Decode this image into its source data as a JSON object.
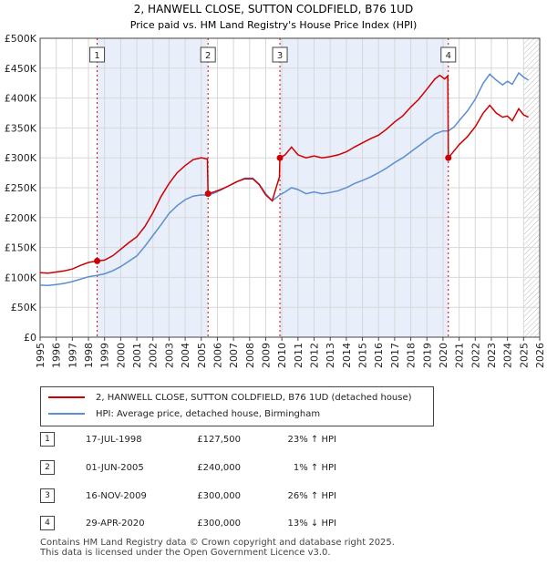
{
  "chart_data": {
    "type": "line",
    "title": "2, HANWELL CLOSE, SUTTON COLDFIELD, B76 1UD",
    "subtitle": "Price paid vs. HM Land Registry's House Price Index (HPI)",
    "ylim": [
      0,
      500000
    ],
    "xlim": [
      1995.0,
      2026.0
    ],
    "y_ticks": [
      {
        "v": 0,
        "label": "£0"
      },
      {
        "v": 50000,
        "label": "£50K"
      },
      {
        "v": 100000,
        "label": "£100K"
      },
      {
        "v": 150000,
        "label": "£150K"
      },
      {
        "v": 200000,
        "label": "£200K"
      },
      {
        "v": 250000,
        "label": "£250K"
      },
      {
        "v": 300000,
        "label": "£300K"
      },
      {
        "v": 350000,
        "label": "£350K"
      },
      {
        "v": 400000,
        "label": "£400K"
      },
      {
        "v": 450000,
        "label": "£450K"
      },
      {
        "v": 500000,
        "label": "£500K"
      }
    ],
    "x_ticks": [
      "1995",
      "1996",
      "1997",
      "1998",
      "1999",
      "2000",
      "2001",
      "2002",
      "2003",
      "2004",
      "2005",
      "2006",
      "2007",
      "2008",
      "2009",
      "2010",
      "2011",
      "2012",
      "2013",
      "2014",
      "2015",
      "2016",
      "2017",
      "2018",
      "2019",
      "2020",
      "2021",
      "2022",
      "2023",
      "2024",
      "2025",
      "2026"
    ],
    "shaded_periods": [
      [
        1998.54,
        2005.42
      ],
      [
        2009.88,
        2020.33
      ]
    ],
    "forecast_from": 2025.0,
    "series": [
      {
        "name": "2, HANWELL CLOSE, SUTTON COLDFIELD, B76 1UD (detached house)",
        "color": "#cc0000",
        "points": [
          [
            1995.0,
            108000
          ],
          [
            1995.5,
            107000
          ],
          [
            1996.0,
            109000
          ],
          [
            1996.5,
            111000
          ],
          [
            1997.0,
            114000
          ],
          [
            1997.5,
            120000
          ],
          [
            1998.0,
            125000
          ],
          [
            1998.54,
            127500
          ],
          [
            1999.0,
            129000
          ],
          [
            1999.5,
            136000
          ],
          [
            2000.0,
            147000
          ],
          [
            2000.5,
            158000
          ],
          [
            2001.0,
            168000
          ],
          [
            2001.5,
            185000
          ],
          [
            2002.0,
            208000
          ],
          [
            2002.5,
            235000
          ],
          [
            2003.0,
            257000
          ],
          [
            2003.5,
            275000
          ],
          [
            2004.0,
            287000
          ],
          [
            2004.5,
            297000
          ],
          [
            2005.0,
            300000
          ],
          [
            2005.38,
            298000
          ],
          [
            2005.42,
            240000
          ],
          [
            2005.8,
            243000
          ],
          [
            2006.2,
            247000
          ],
          [
            2006.7,
            253000
          ],
          [
            2007.2,
            260000
          ],
          [
            2007.7,
            265000
          ],
          [
            2008.2,
            265000
          ],
          [
            2008.6,
            255000
          ],
          [
            2009.0,
            238000
          ],
          [
            2009.4,
            228000
          ],
          [
            2009.7,
            255000
          ],
          [
            2009.85,
            268000
          ],
          [
            2009.88,
            300000
          ],
          [
            2010.2,
            305000
          ],
          [
            2010.6,
            318000
          ],
          [
            2011.0,
            305000
          ],
          [
            2011.5,
            300000
          ],
          [
            2012.0,
            303000
          ],
          [
            2012.5,
            300000
          ],
          [
            2013.0,
            302000
          ],
          [
            2013.5,
            305000
          ],
          [
            2014.0,
            310000
          ],
          [
            2014.5,
            318000
          ],
          [
            2015.0,
            325000
          ],
          [
            2015.5,
            332000
          ],
          [
            2016.0,
            338000
          ],
          [
            2016.5,
            348000
          ],
          [
            2017.0,
            360000
          ],
          [
            2017.5,
            370000
          ],
          [
            2018.0,
            385000
          ],
          [
            2018.5,
            398000
          ],
          [
            2019.0,
            415000
          ],
          [
            2019.5,
            432000
          ],
          [
            2019.8,
            438000
          ],
          [
            2020.1,
            432000
          ],
          [
            2020.3,
            437000
          ],
          [
            2020.33,
            300000
          ],
          [
            2020.7,
            312000
          ],
          [
            2021.0,
            322000
          ],
          [
            2021.5,
            335000
          ],
          [
            2022.0,
            352000
          ],
          [
            2022.5,
            375000
          ],
          [
            2022.9,
            388000
          ],
          [
            2023.3,
            375000
          ],
          [
            2023.7,
            368000
          ],
          [
            2024.0,
            370000
          ],
          [
            2024.3,
            362000
          ],
          [
            2024.7,
            382000
          ],
          [
            2025.0,
            372000
          ],
          [
            2025.3,
            368000
          ]
        ]
      },
      {
        "name": "HPI: Average price, detached house, Birmingham",
        "color": "#5a8fd0",
        "points": [
          [
            1995.0,
            87000
          ],
          [
            1995.5,
            86500
          ],
          [
            1996.0,
            88000
          ],
          [
            1996.5,
            90000
          ],
          [
            1997.0,
            93000
          ],
          [
            1997.5,
            97000
          ],
          [
            1998.0,
            101000
          ],
          [
            1998.54,
            103500
          ],
          [
            1999.0,
            106000
          ],
          [
            1999.5,
            111000
          ],
          [
            2000.0,
            118000
          ],
          [
            2000.5,
            127000
          ],
          [
            2001.0,
            136000
          ],
          [
            2001.5,
            152000
          ],
          [
            2002.0,
            170000
          ],
          [
            2002.5,
            188000
          ],
          [
            2003.0,
            207000
          ],
          [
            2003.5,
            220000
          ],
          [
            2004.0,
            230000
          ],
          [
            2004.5,
            236000
          ],
          [
            2005.0,
            238000
          ],
          [
            2005.42,
            237500
          ],
          [
            2005.8,
            241000
          ],
          [
            2006.2,
            246000
          ],
          [
            2006.7,
            253000
          ],
          [
            2007.2,
            260000
          ],
          [
            2007.7,
            266000
          ],
          [
            2008.2,
            266000
          ],
          [
            2008.6,
            256000
          ],
          [
            2009.0,
            240000
          ],
          [
            2009.4,
            228000
          ],
          [
            2009.88,
            238000
          ],
          [
            2010.2,
            243000
          ],
          [
            2010.6,
            250000
          ],
          [
            2011.0,
            247000
          ],
          [
            2011.5,
            240000
          ],
          [
            2012.0,
            243000
          ],
          [
            2012.5,
            240000
          ],
          [
            2013.0,
            242000
          ],
          [
            2013.5,
            245000
          ],
          [
            2014.0,
            250000
          ],
          [
            2014.5,
            257000
          ],
          [
            2015.0,
            262000
          ],
          [
            2015.5,
            268000
          ],
          [
            2016.0,
            275000
          ],
          [
            2016.5,
            283000
          ],
          [
            2017.0,
            292000
          ],
          [
            2017.5,
            300000
          ],
          [
            2018.0,
            310000
          ],
          [
            2018.5,
            320000
          ],
          [
            2019.0,
            330000
          ],
          [
            2019.5,
            340000
          ],
          [
            2020.0,
            345000
          ],
          [
            2020.33,
            345000
          ],
          [
            2020.7,
            352000
          ],
          [
            2021.0,
            362000
          ],
          [
            2021.5,
            378000
          ],
          [
            2022.0,
            398000
          ],
          [
            2022.5,
            425000
          ],
          [
            2022.9,
            440000
          ],
          [
            2023.3,
            430000
          ],
          [
            2023.7,
            422000
          ],
          [
            2024.0,
            428000
          ],
          [
            2024.3,
            423000
          ],
          [
            2024.7,
            442000
          ],
          [
            2025.0,
            435000
          ],
          [
            2025.3,
            430000
          ]
        ]
      }
    ],
    "sales": [
      {
        "label": "1",
        "x": 1998.54,
        "y": 127500
      },
      {
        "label": "2",
        "x": 2005.42,
        "y": 240000
      },
      {
        "label": "3",
        "x": 2009.88,
        "y": 300000
      },
      {
        "label": "4",
        "x": 2020.33,
        "y": 300000
      }
    ]
  },
  "legend": {
    "property": "2, HANWELL CLOSE, SUTTON COLDFIELD, B76 1UD (detached house)",
    "hpi": "HPI: Average price, detached house, Birmingham"
  },
  "transactions": [
    {
      "num": "1",
      "date": "17-JUL-1998",
      "price": "£127,500",
      "hpi": "23% ↑ HPI"
    },
    {
      "num": "2",
      "date": "01-JUN-2005",
      "price": "£240,000",
      "hpi": "1% ↑ HPI"
    },
    {
      "num": "3",
      "date": "16-NOV-2009",
      "price": "£300,000",
      "hpi": "26% ↑ HPI"
    },
    {
      "num": "4",
      "date": "29-APR-2020",
      "price": "£300,000",
      "hpi": "13% ↓ HPI"
    }
  ],
  "footer": {
    "line1": "Contains HM Land Registry data © Crown copyright and database right 2025.",
    "line2": "This data is licensed under the Open Government Licence v3.0."
  }
}
